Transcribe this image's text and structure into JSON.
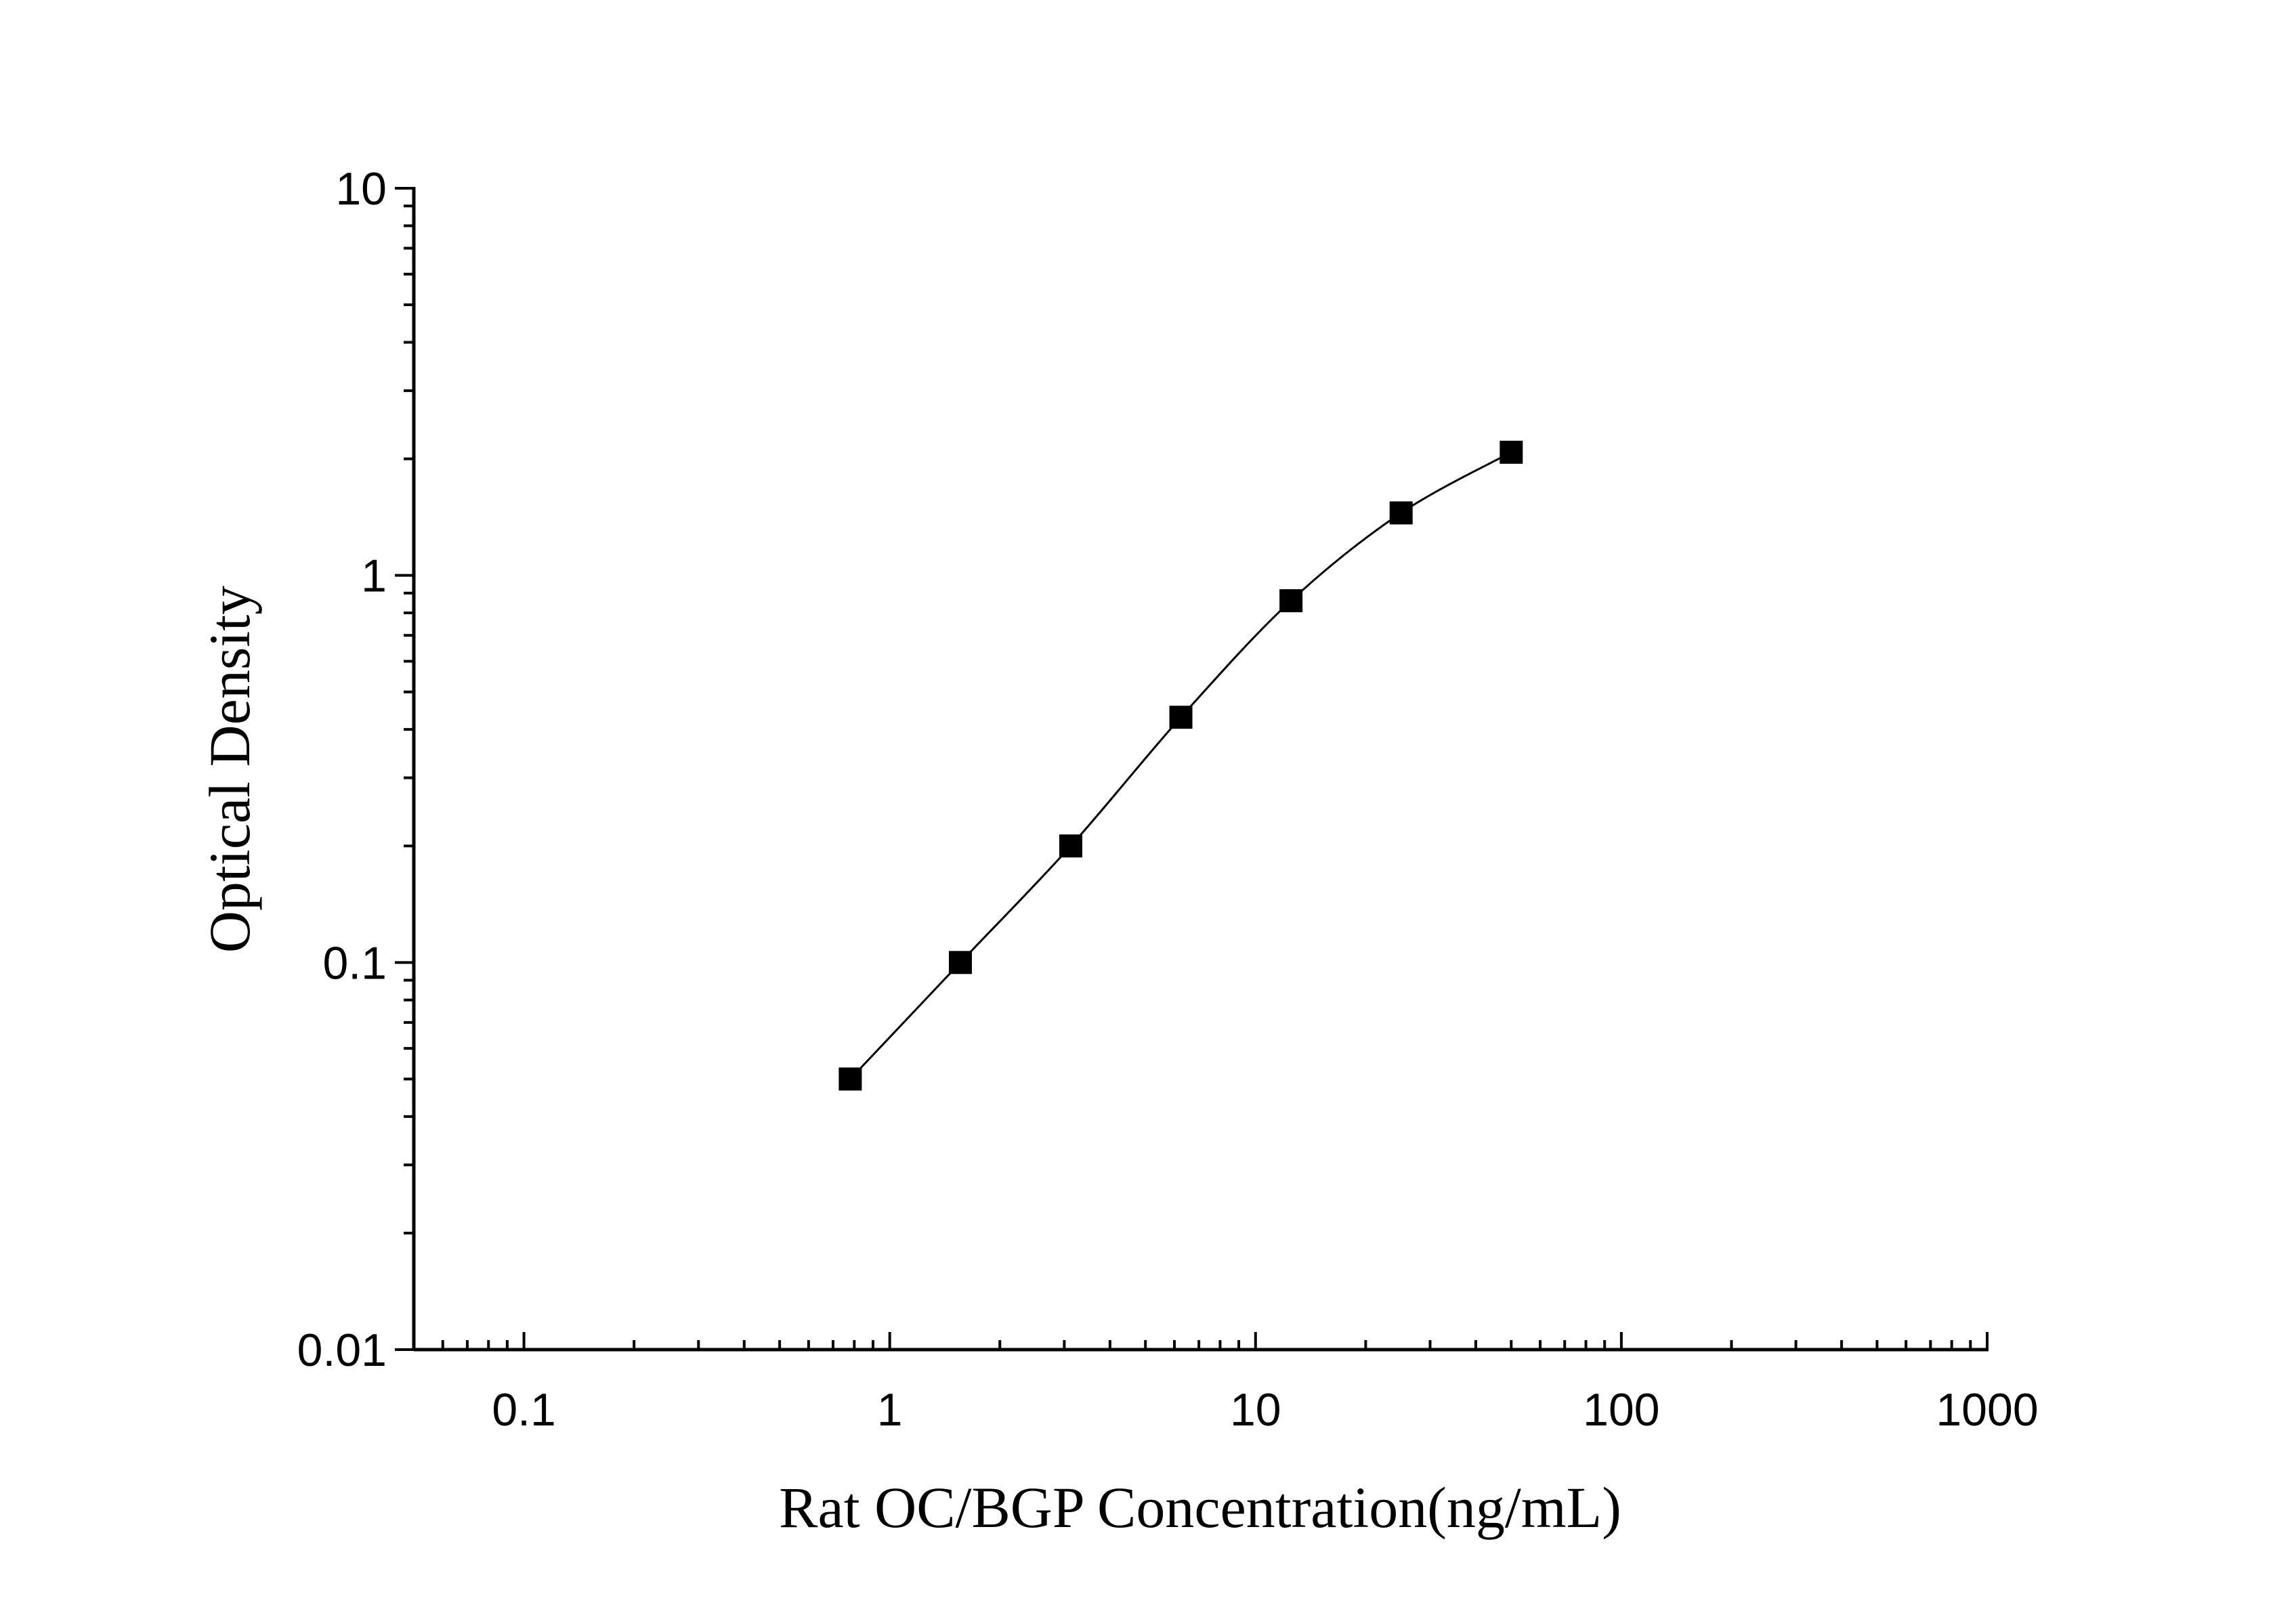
{
  "chart_data": {
    "type": "scatter",
    "title": "",
    "xlabel": "Rat OC/BGP Concentration(ng/mL)",
    "ylabel": "Optical Density",
    "xscale": "log",
    "yscale": "log",
    "xlim": [
      0.05,
      1000
    ],
    "ylim": [
      0.01,
      10
    ],
    "x_ticks": [
      "0.1",
      "1",
      "10",
      "100",
      "1000"
    ],
    "y_ticks": [
      "0.01",
      "0.1",
      "1",
      "10"
    ],
    "grid": false,
    "legend": "none",
    "fit_curve": true,
    "marker": "square",
    "color": "#000000",
    "series": [
      {
        "x": [
          0.78,
          1.56,
          3.125,
          6.25,
          12.5,
          25,
          50
        ],
        "y": [
          0.05,
          0.1,
          0.2,
          0.43,
          0.86,
          1.45,
          2.08
        ]
      }
    ]
  }
}
